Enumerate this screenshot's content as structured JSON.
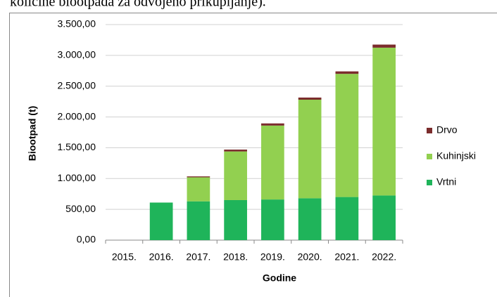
{
  "text_fragment": "količine biootpada za odvojeno prikupljanje).",
  "chart_data": {
    "type": "stacked_bar",
    "x_label": "Godine",
    "y_label": "Biootpad (t)",
    "categories": [
      "2015.",
      "2016.",
      "2017.",
      "2018.",
      "2019.",
      "2020.",
      "2021.",
      "2022."
    ],
    "series": [
      {
        "name": "Vrtni",
        "color": "#1fb45a",
        "values": [
          0,
          610,
          630,
          650,
          660,
          680,
          700,
          725
        ]
      },
      {
        "name": "Kuhinjski",
        "color": "#92d050",
        "values": [
          0,
          0,
          390,
          790,
          1200,
          1600,
          2000,
          2400
        ]
      },
      {
        "name": "Drvo",
        "color": "#7b2c2c",
        "values": [
          0,
          0,
          15,
          30,
          35,
          35,
          40,
          50
        ]
      }
    ],
    "ylim": [
      0,
      3500
    ],
    "yticks": [
      {
        "value": 0,
        "label": "0,00"
      },
      {
        "value": 500,
        "label": "500,00"
      },
      {
        "value": 1000,
        "label": "1.000,00"
      },
      {
        "value": 1500,
        "label": "1.500,00"
      },
      {
        "value": 2000,
        "label": "2.000,00"
      },
      {
        "value": 2500,
        "label": "2.500,00"
      },
      {
        "value": 3000,
        "label": "3.000,00"
      },
      {
        "value": 3500,
        "label": "3.500,00"
      }
    ],
    "grid": true,
    "legend": "right"
  }
}
